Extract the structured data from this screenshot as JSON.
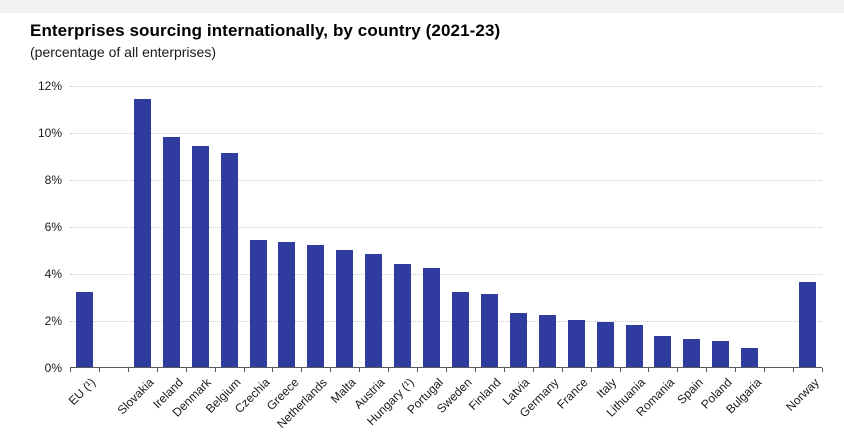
{
  "window": {
    "top_strip_color": "#f2f2f2"
  },
  "header": {
    "title": "Enterprises sourcing internationally, by country (2021-23)",
    "subtitle": "(percentage of all enterprises)"
  },
  "chart_data": {
    "type": "bar",
    "title": "Enterprises sourcing internationally, by country (2021-23)",
    "subtitle": "(percentage of all enterprises)",
    "categories": [
      "EU (¹)",
      "",
      "Slovakia",
      "Ireland",
      "Denmark",
      "Belgium",
      "Czechia",
      "Greece",
      "Netherlands",
      "Malta",
      "Austria",
      "Hungary (¹)",
      "Portugal",
      "Sweden",
      "Finland",
      "Latvia",
      "Germany",
      "France",
      "Italy",
      "Lithuania",
      "Romania",
      "Spain",
      "Poland",
      "Bulgaria",
      "",
      "Norway"
    ],
    "values": [
      3.2,
      null,
      11.4,
      9.8,
      9.4,
      9.1,
      5.4,
      5.3,
      5.2,
      5.0,
      4.8,
      4.4,
      4.2,
      3.2,
      3.1,
      2.3,
      2.2,
      2.0,
      1.9,
      1.8,
      1.3,
      1.2,
      1.1,
      0.8,
      null,
      3.6
    ],
    "xlabel": "",
    "ylabel": "percentage of all enterprises",
    "ylim": [
      0,
      12
    ],
    "ytick_step": 2,
    "yticks": [
      "0%",
      "2%",
      "4%",
      "6%",
      "8%",
      "10%",
      "12%"
    ],
    "grid": "horizontal-dotted",
    "legend": "none",
    "bar_color": "#2F3B9E"
  },
  "colors": {
    "bar": "#2F3B9E",
    "grid": "#c9c9c9",
    "axis": "#595959",
    "text": "#1a1a1a",
    "background": "#ffffff"
  }
}
